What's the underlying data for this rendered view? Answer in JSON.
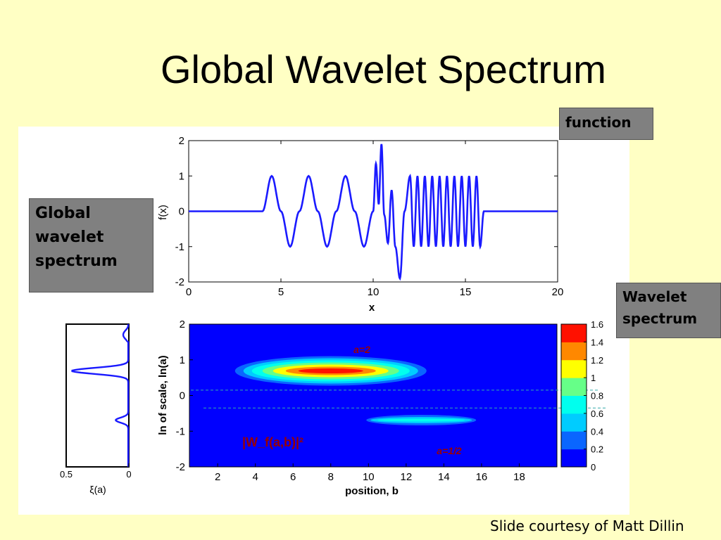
{
  "slide": {
    "title": "Global Wavelet Spectrum",
    "credit": "Slide courtesy of Matt Dillin",
    "callouts": {
      "function": "function",
      "global": [
        "Global",
        "wavelet",
        "spectrum"
      ],
      "wavelet": [
        "Wavelet",
        "spectrum"
      ]
    }
  },
  "chart_data": [
    {
      "type": "line",
      "xlabel": "x",
      "ylabel": "f(x)",
      "xlim": [
        0,
        20
      ],
      "ylim": [
        -2,
        2
      ],
      "xticks": [
        0,
        5,
        10,
        15,
        20
      ],
      "yticks": [
        -2,
        -1,
        0,
        1,
        2
      ],
      "color": "#1a1aff",
      "x": [
        0,
        4,
        4.5,
        5,
        5.5,
        6,
        6.5,
        7,
        7.5,
        8,
        8.5,
        9,
        9.5,
        10,
        10.15,
        10.3,
        10.45,
        10.6,
        10.8,
        11.0,
        11.2,
        11.45,
        11.7,
        12.0,
        12.2,
        12.4,
        12.6,
        12.8,
        13.0,
        13.2,
        13.4,
        13.6,
        13.8,
        14.0,
        14.2,
        14.4,
        14.6,
        14.8,
        15.0,
        15.2,
        15.4,
        15.6,
        15.8,
        16,
        20
      ],
      "y": [
        0,
        0,
        1,
        0,
        -1,
        0,
        1,
        0,
        -1,
        0,
        1,
        0,
        -1,
        0,
        1.35,
        0.2,
        1.9,
        -0.1,
        -0.9,
        0.6,
        -1.0,
        -1.9,
        0.0,
        1.0,
        -1.0,
        1.0,
        -1.0,
        1.0,
        -1.0,
        1.0,
        -1.0,
        1.0,
        -1.0,
        1.0,
        -1.0,
        1.0,
        -1.0,
        1.0,
        -1.0,
        1.0,
        -1.0,
        1.0,
        -1.0,
        0,
        0
      ]
    },
    {
      "type": "heatmap",
      "xlabel": "position, b",
      "ylabel": "ln of scale, ln(a)",
      "xlim": [
        0.5,
        20
      ],
      "ylim": [
        -2,
        2
      ],
      "xticks": [
        2,
        4,
        6,
        8,
        10,
        12,
        14,
        16,
        18
      ],
      "yticks": [
        -2,
        -1,
        0,
        1,
        2
      ],
      "label_formula": "|W_f(a,b)|²",
      "blobs": [
        {
          "label": "a=2",
          "center_b": 8.0,
          "center_ln_a": 0.69,
          "peak": 1.6
        },
        {
          "label": "a=1/2",
          "center_b": 12.8,
          "center_ln_a": -0.69,
          "peak": 0.4
        }
      ],
      "dashed_lines_ln_a": [
        0.15,
        -0.35
      ],
      "colorbar": {
        "ticks": [
          0,
          0.2,
          0.4,
          0.6,
          0.8,
          1,
          1.2,
          1.4,
          1.6
        ],
        "colors": [
          "#0000ff",
          "#0a66ff",
          "#00ccff",
          "#00ffee",
          "#66ff88",
          "#ffff00",
          "#ff8800",
          "#ff1100",
          "#990000"
        ]
      }
    },
    {
      "type": "line",
      "xlabel": "ξ(a)",
      "xlim": [
        0.5,
        0
      ],
      "xticks": [
        0.5,
        0
      ],
      "ylim": [
        -2,
        2
      ],
      "color": "#1a1aff",
      "peaks": [
        {
          "ln_a": 0.69,
          "value": 0.45
        },
        {
          "ln_a": -0.69,
          "value": 0.1
        }
      ]
    }
  ]
}
